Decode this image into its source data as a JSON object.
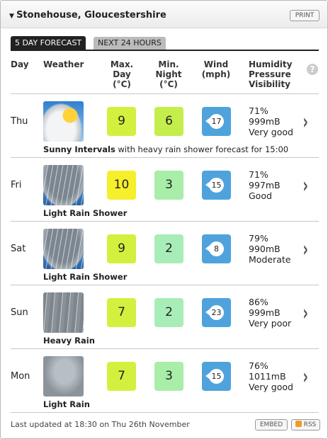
{
  "header": {
    "location": "Stonehouse, Gloucestershire",
    "print": "PRINT"
  },
  "tabs": [
    "5 DAY FORECAST",
    "NEXT 24 HOURS"
  ],
  "columns": {
    "day": "Day",
    "weather": "Weather",
    "max": [
      "Max.",
      "Day",
      "(°C)"
    ],
    "min": [
      "Min.",
      "Night",
      "(°C)"
    ],
    "wind": [
      "Wind",
      "(mph)"
    ],
    "conditions": [
      "Humidity",
      "Pressure",
      "Visibility"
    ],
    "help": "?"
  },
  "rows": [
    {
      "day": "Thu",
      "summary": "Sunny Intervals",
      "detail": "with heavy rain shower forecast for 15:00",
      "max": 9,
      "max_color": "#d4f03e",
      "min": 6,
      "min_color": "#c4ee4c",
      "wind": 17,
      "humidity": "71%",
      "pressure": "999mB",
      "visibility": "Very good"
    },
    {
      "day": "Fri",
      "summary": "Light Rain Shower",
      "detail": null,
      "max": 10,
      "max_color": "#f6ef2c",
      "min": 3,
      "min_color": "#a8eda8",
      "wind": 15,
      "humidity": "71%",
      "pressure": "997mB",
      "visibility": "Good"
    },
    {
      "day": "Sat",
      "summary": "Light Rain Shower",
      "detail": null,
      "max": 9,
      "max_color": "#d4f03e",
      "min": 2,
      "min_color": "#a8edb8",
      "wind": 8,
      "humidity": "79%",
      "pressure": "990mB",
      "visibility": "Moderate"
    },
    {
      "day": "Sun",
      "summary": "Heavy Rain",
      "detail": null,
      "max": 7,
      "max_color": "#d4f03e",
      "min": 2,
      "min_color": "#a8edb8",
      "wind": 23,
      "humidity": "86%",
      "pressure": "999mB",
      "visibility": "Very poor"
    },
    {
      "day": "Mon",
      "summary": "Light Rain",
      "detail": null,
      "max": 7,
      "max_color": "#d4f03e",
      "min": 3,
      "min_color": "#a8eda8",
      "wind": 15,
      "humidity": "76%",
      "pressure": "1011mB",
      "visibility": "Very good"
    }
  ],
  "footer": {
    "updated": "Last updated at 18:30 on Thu 26th November",
    "embed": "EMBED",
    "rss": "RSS"
  }
}
